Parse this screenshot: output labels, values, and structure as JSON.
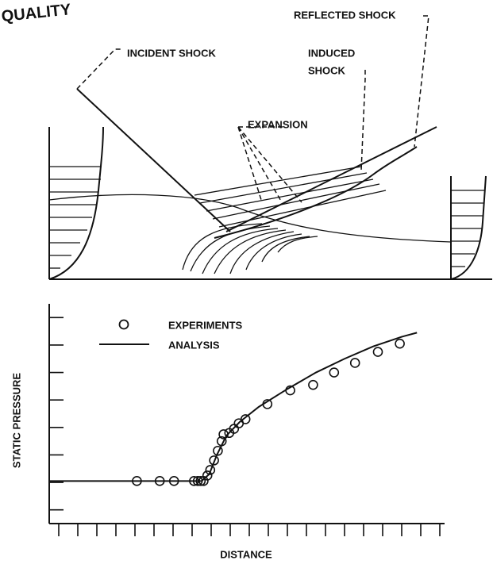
{
  "header": {
    "title": "QUALITY"
  },
  "diagram": {
    "labels": {
      "incident": "INCIDENT SHOCK",
      "reflected": "REFLECTED SHOCK",
      "induced_1": "INDUCED",
      "induced_2": "SHOCK",
      "expansion": "EXPANSION"
    }
  },
  "chart_data": {
    "type": "line",
    "x_label": "DISTANCE",
    "y_label": "STATIC PRESSURE",
    "xlim": [
      -0.5,
      20.5
    ],
    "ylim": [
      -0.5,
      7.5
    ],
    "xticks": [
      0,
      1,
      2,
      3,
      4,
      5,
      6,
      7,
      8,
      9,
      10,
      11,
      12,
      13,
      14,
      15,
      16,
      17,
      18,
      19,
      20
    ],
    "yticks": [
      0,
      1,
      2,
      3,
      4,
      5,
      6,
      7
    ],
    "series": [
      {
        "name": "EXPERIMENTS",
        "color": "#111",
        "marker": "circle",
        "x": [
          4.1,
          5.3,
          6.05,
          7.1,
          7.3,
          7.45,
          7.6,
          7.8,
          7.95,
          8.15,
          8.35,
          8.55,
          8.65,
          8.95,
          9.2,
          9.45,
          9.8,
          10.95,
          12.15,
          13.35,
          14.45,
          15.55,
          16.75,
          17.9
        ],
        "values": [
          1.05,
          1.05,
          1.05,
          1.05,
          1.05,
          1.05,
          1.05,
          1.25,
          1.45,
          1.8,
          2.15,
          2.5,
          2.75,
          2.8,
          2.95,
          3.15,
          3.3,
          3.85,
          4.35,
          4.55,
          5.0,
          5.35,
          5.75,
          6.05
        ]
      },
      {
        "name": "ANALYSIS",
        "color": "#111",
        "x": [
          -0.5,
          7.5,
          7.9,
          8.3,
          8.8,
          9.5,
          10.5,
          12,
          13.5,
          15,
          16.5,
          18,
          18.8
        ],
        "values": [
          1.05,
          1.05,
          1.3,
          2.0,
          2.7,
          3.2,
          3.75,
          4.4,
          5.0,
          5.5,
          5.95,
          6.3,
          6.45
        ]
      }
    ]
  }
}
